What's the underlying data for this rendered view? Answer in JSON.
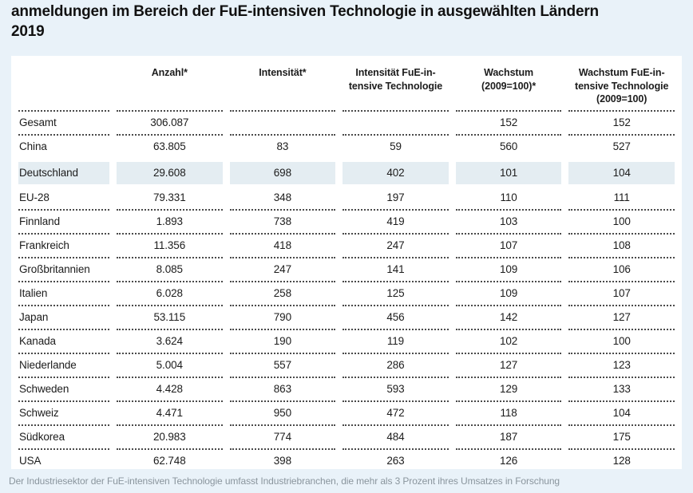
{
  "title": "anmeldungen im Bereich der FuE-intensiven Technologie in ausgewählten Ländern\n2019",
  "footnote": "Der Industriesektor der FuE-intensiven Technologie umfasst Industriebranchen, die mehr als 3 Prozent ihres Umsatzes in Forschung",
  "colors": {
    "page_bg": "#e9f2f9",
    "card_bg": "#ffffff",
    "highlight_bg": "#e4edf2",
    "text": "#1c1c1c",
    "footnote_text": "#8a959d",
    "separator": "#4a4a4a"
  },
  "chart_data": {
    "type": "table",
    "title": "anmeldungen im Bereich der FuE-intensiven Technologie in ausgewählten Ländern 2019",
    "columns": [
      [
        ""
      ],
      [
        "Anzahl*"
      ],
      [
        "Intensität*"
      ],
      [
        "Intensität FuE-in-",
        "tensive Technologie"
      ],
      [
        "Wachstum",
        "(2009=100)*"
      ],
      [
        "Wachstum FuE-in-",
        "tensive Technologie",
        "(2009=100)"
      ]
    ],
    "highlighted_row": "Deutschland",
    "rows": [
      {
        "label": "Gesamt",
        "values": [
          "306.087",
          "",
          "",
          "152",
          "152"
        ],
        "highlight": false
      },
      {
        "label": "China",
        "values": [
          "63.805",
          "83",
          "59",
          "560",
          "527"
        ],
        "highlight": false
      },
      {
        "label": "Deutschland",
        "values": [
          "29.608",
          "698",
          "402",
          "101",
          "104"
        ],
        "highlight": true
      },
      {
        "label": "EU-28",
        "values": [
          "79.331",
          "348",
          "197",
          "110",
          "111"
        ],
        "highlight": false
      },
      {
        "label": "Finnland",
        "values": [
          "1.893",
          "738",
          "419",
          "103",
          "100"
        ],
        "highlight": false
      },
      {
        "label": "Frankreich",
        "values": [
          "11.356",
          "418",
          "247",
          "107",
          "108"
        ],
        "highlight": false
      },
      {
        "label": "Großbritannien",
        "values": [
          "8.085",
          "247",
          "141",
          "109",
          "106"
        ],
        "highlight": false
      },
      {
        "label": "Italien",
        "values": [
          "6.028",
          "258",
          "125",
          "109",
          "107"
        ],
        "highlight": false
      },
      {
        "label": "Japan",
        "values": [
          "53.115",
          "790",
          "456",
          "142",
          "127"
        ],
        "highlight": false
      },
      {
        "label": "Kanada",
        "values": [
          "3.624",
          "190",
          "119",
          "102",
          "100"
        ],
        "highlight": false
      },
      {
        "label": "Niederlande",
        "values": [
          "5.004",
          "557",
          "286",
          "127",
          "123"
        ],
        "highlight": false
      },
      {
        "label": "Schweden",
        "values": [
          "4.428",
          "863",
          "593",
          "129",
          "133"
        ],
        "highlight": false
      },
      {
        "label": "Schweiz",
        "values": [
          "4.471",
          "950",
          "472",
          "118",
          "104"
        ],
        "highlight": false
      },
      {
        "label": "Südkorea",
        "values": [
          "20.983",
          "774",
          "484",
          "187",
          "175"
        ],
        "highlight": false
      },
      {
        "label": "USA",
        "values": [
          "62.748",
          "398",
          "263",
          "126",
          "128"
        ],
        "highlight": false
      }
    ]
  }
}
